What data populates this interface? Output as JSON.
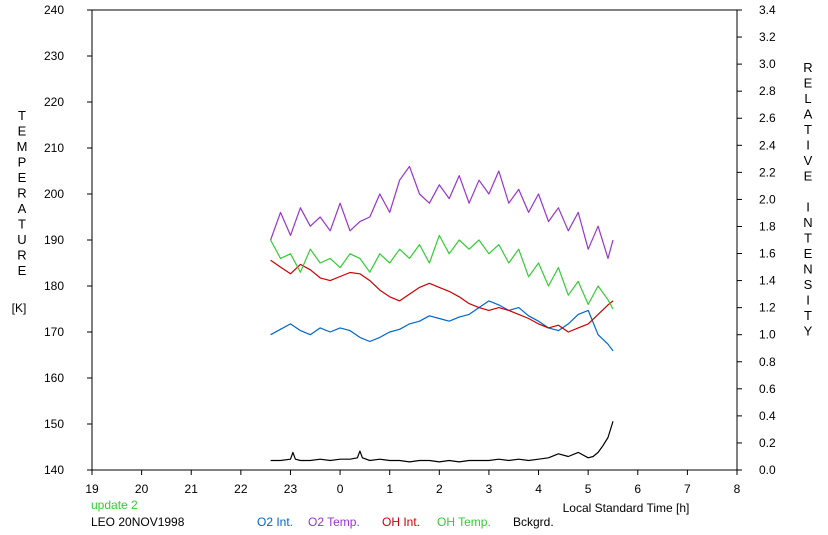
{
  "chart_data": {
    "type": "line",
    "title": "",
    "left_axis": {
      "label_letters": [
        "T",
        "E",
        "M",
        "P",
        "E",
        "R",
        "A",
        "T",
        "U",
        "R",
        "E"
      ],
      "unit": "[K]",
      "ticks": [
        140,
        150,
        160,
        170,
        180,
        190,
        200,
        210,
        220,
        230,
        240
      ],
      "range": [
        140,
        240
      ]
    },
    "right_axis": {
      "label_letters": [
        "R",
        "E",
        "L",
        "A",
        "T",
        "I",
        "V",
        "E",
        " ",
        "I",
        "N",
        "T",
        "E",
        "N",
        "S",
        "I",
        "T",
        "Y"
      ],
      "ticks": [
        "0.0",
        "0.2",
        "0.4",
        "0.6",
        "0.8",
        "1.0",
        "1.2",
        "1.4",
        "1.6",
        "1.8",
        "2.0",
        "2.2",
        "2.4",
        "2.6",
        "2.8",
        "3.0",
        "3.2",
        "3.4"
      ],
      "range": [
        0.0,
        3.4
      ]
    },
    "x_axis": {
      "label": "Local Standard Time [h]",
      "ticks": [
        "19",
        "20",
        "21",
        "22",
        "23",
        "0",
        "1",
        "2",
        "3",
        "4",
        "5",
        "6",
        "7",
        "8"
      ],
      "range_hours_continuous": [
        19,
        32
      ]
    },
    "annotations": {
      "update": "update 2",
      "site_date": "LEO 20NOV1998"
    },
    "grid": false,
    "legend_placement": "bottom",
    "series": [
      {
        "name": "O2 Int.",
        "axis": "right",
        "color": "#0066cc",
        "x": [
          22.6,
          22.8,
          23.0,
          23.2,
          23.4,
          23.6,
          23.8,
          24.0,
          24.2,
          24.4,
          24.6,
          24.8,
          25.0,
          25.2,
          25.4,
          25.6,
          25.8,
          26.0,
          26.2,
          26.4,
          26.6,
          26.8,
          27.0,
          27.2,
          27.4,
          27.6,
          27.8,
          28.0,
          28.2,
          28.4,
          28.6,
          28.8,
          29.0,
          29.2,
          29.4,
          29.5
        ],
        "y": [
          1.0,
          1.04,
          1.08,
          1.03,
          1.0,
          1.05,
          1.02,
          1.05,
          1.03,
          0.98,
          0.95,
          0.98,
          1.02,
          1.04,
          1.08,
          1.1,
          1.14,
          1.12,
          1.1,
          1.13,
          1.15,
          1.2,
          1.25,
          1.22,
          1.18,
          1.2,
          1.14,
          1.1,
          1.05,
          1.03,
          1.08,
          1.15,
          1.18,
          1.0,
          0.93,
          0.88
        ]
      },
      {
        "name": "O2 Temp.",
        "axis": "left",
        "color": "#9933cc",
        "x": [
          22.6,
          22.8,
          23.0,
          23.2,
          23.4,
          23.6,
          23.8,
          24.0,
          24.2,
          24.4,
          24.6,
          24.8,
          25.0,
          25.2,
          25.4,
          25.6,
          25.8,
          26.0,
          26.2,
          26.4,
          26.6,
          26.8,
          27.0,
          27.2,
          27.4,
          27.6,
          27.8,
          28.0,
          28.2,
          28.4,
          28.6,
          28.8,
          29.0,
          29.2,
          29.4,
          29.5
        ],
        "y": [
          190,
          196,
          191,
          197,
          193,
          195,
          192,
          198,
          192,
          194,
          195,
          200,
          196,
          203,
          206,
          200,
          198,
          202,
          199,
          204,
          198,
          203,
          200,
          205,
          198,
          201,
          196,
          200,
          194,
          197,
          192,
          196,
          188,
          193,
          186,
          190
        ]
      },
      {
        "name": "OH Int.",
        "axis": "right",
        "color": "#cc0000",
        "x": [
          22.6,
          22.8,
          23.0,
          23.2,
          23.4,
          23.6,
          23.8,
          24.0,
          24.2,
          24.4,
          24.6,
          24.8,
          25.0,
          25.2,
          25.4,
          25.6,
          25.8,
          26.0,
          26.2,
          26.4,
          26.6,
          26.8,
          27.0,
          27.2,
          27.4,
          27.6,
          27.8,
          28.0,
          28.2,
          28.4,
          28.6,
          28.8,
          29.0,
          29.2,
          29.4,
          29.5
        ],
        "y": [
          1.55,
          1.5,
          1.45,
          1.52,
          1.48,
          1.42,
          1.4,
          1.43,
          1.46,
          1.45,
          1.4,
          1.33,
          1.28,
          1.25,
          1.3,
          1.35,
          1.38,
          1.35,
          1.32,
          1.28,
          1.23,
          1.2,
          1.18,
          1.2,
          1.18,
          1.15,
          1.12,
          1.08,
          1.05,
          1.07,
          1.02,
          1.05,
          1.08,
          1.15,
          1.22,
          1.25
        ]
      },
      {
        "name": "OH Temp.",
        "axis": "left",
        "color": "#33cc33",
        "x": [
          22.6,
          22.8,
          23.0,
          23.2,
          23.4,
          23.6,
          23.8,
          24.0,
          24.2,
          24.4,
          24.6,
          24.8,
          25.0,
          25.2,
          25.4,
          25.6,
          25.8,
          26.0,
          26.2,
          26.4,
          26.6,
          26.8,
          27.0,
          27.2,
          27.4,
          27.6,
          27.8,
          28.0,
          28.2,
          28.4,
          28.6,
          28.8,
          29.0,
          29.2,
          29.4,
          29.5
        ],
        "y": [
          190,
          186,
          187,
          183,
          188,
          185,
          186,
          184,
          187,
          186,
          183,
          187,
          185,
          188,
          186,
          189,
          185,
          191,
          187,
          190,
          188,
          190,
          187,
          189,
          185,
          188,
          182,
          185,
          180,
          184,
          178,
          181,
          176,
          180,
          177,
          175
        ]
      },
      {
        "name": "Bckgrd.",
        "axis": "right",
        "color": "#000000",
        "x": [
          22.6,
          22.8,
          23.0,
          23.05,
          23.1,
          23.2,
          23.4,
          23.6,
          23.8,
          24.0,
          24.2,
          24.35,
          24.4,
          24.45,
          24.6,
          24.8,
          25.0,
          25.2,
          25.4,
          25.6,
          25.8,
          26.0,
          26.2,
          26.4,
          26.6,
          26.8,
          27.0,
          27.2,
          27.4,
          27.6,
          27.8,
          28.0,
          28.2,
          28.4,
          28.6,
          28.8,
          29.0,
          29.1,
          29.2,
          29.3,
          29.4,
          29.5
        ],
        "y": [
          0.07,
          0.07,
          0.08,
          0.13,
          0.08,
          0.07,
          0.07,
          0.08,
          0.07,
          0.08,
          0.08,
          0.09,
          0.14,
          0.09,
          0.07,
          0.08,
          0.07,
          0.07,
          0.06,
          0.07,
          0.07,
          0.06,
          0.07,
          0.06,
          0.07,
          0.07,
          0.07,
          0.08,
          0.07,
          0.08,
          0.07,
          0.08,
          0.09,
          0.12,
          0.1,
          0.13,
          0.09,
          0.1,
          0.13,
          0.18,
          0.24,
          0.36
        ]
      }
    ]
  }
}
